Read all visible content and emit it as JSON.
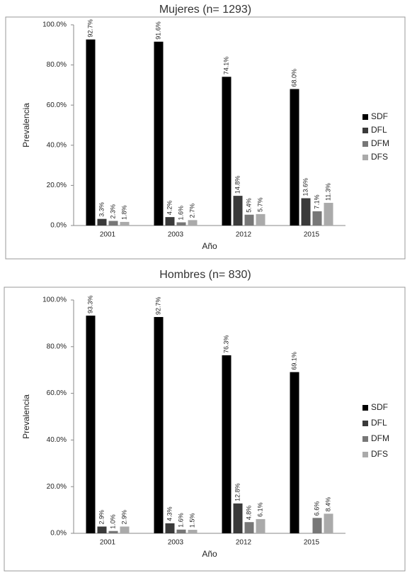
{
  "chart_data": [
    {
      "type": "bar",
      "title": "Mujeres (n= 1293)",
      "x_label": "Año",
      "y_label": "Prevalencia",
      "categories": [
        "2001",
        "2003",
        "2012",
        "2015"
      ],
      "series": [
        {
          "name": "SDF",
          "color": "#000000",
          "values": [
            92.7,
            91.6,
            74.1,
            68.0
          ],
          "value_labels": [
            "92.7%",
            "91.6%",
            "74.1%",
            "68.0%"
          ]
        },
        {
          "name": "DFL",
          "color": "#3a3a3a",
          "values": [
            3.3,
            4.2,
            14.8,
            13.6
          ],
          "value_labels": [
            "3.3%",
            "4.2%",
            "14.8%",
            "13.6%"
          ]
        },
        {
          "name": "DFM",
          "color": "#777777",
          "values": [
            2.3,
            1.6,
            5.4,
            7.1
          ],
          "value_labels": [
            "2.3%",
            "1.6%",
            "5.4%",
            "7.1%"
          ]
        },
        {
          "name": "DFS",
          "color": "#aaaaaa",
          "values": [
            1.8,
            2.7,
            5.7,
            11.3
          ],
          "value_labels": [
            "1.8%",
            "2.7%",
            "5.7%",
            "11.3%"
          ]
        }
      ],
      "ylim": [
        0,
        100
      ],
      "yticks": [
        {
          "value": 0,
          "label": "0.0%"
        },
        {
          "value": 20,
          "label": "20.0%"
        },
        {
          "value": 40,
          "label": "40.0%"
        },
        {
          "value": 60,
          "label": "60.0%"
        },
        {
          "value": 80,
          "label": "80.0%"
        },
        {
          "value": 100,
          "label": "100.0%"
        }
      ],
      "legend": "right"
    },
    {
      "type": "bar",
      "title": "Hombres (n= 830)",
      "x_label": "Año",
      "y_label": "Prevalencia",
      "categories": [
        "2001",
        "2003",
        "2012",
        "2015"
      ],
      "series": [
        {
          "name": "SDF",
          "color": "#000000",
          "values": [
            93.3,
            92.7,
            76.3,
            69.1
          ],
          "value_labels": [
            "93.3%",
            "92.7%",
            "76.3%",
            "69.1%"
          ]
        },
        {
          "name": "DFL",
          "color": "#3a3a3a",
          "values": [
            2.9,
            4.3,
            12.8,
            null
          ],
          "value_labels": [
            "2.9%",
            "4.3%",
            "12.8%",
            null
          ]
        },
        {
          "name": "DFM",
          "color": "#777777",
          "values": [
            1.0,
            1.6,
            4.8,
            6.6
          ],
          "value_labels": [
            "1.0%",
            "1.6%",
            "4.8%",
            "6.6%"
          ]
        },
        {
          "name": "DFS",
          "color": "#aaaaaa",
          "values": [
            2.9,
            1.5,
            6.1,
            8.4
          ],
          "value_labels": [
            "2.9%",
            "1.5%",
            "6.1%",
            "8.4%"
          ]
        }
      ],
      "ylim": [
        0,
        100
      ],
      "yticks": [
        {
          "value": 0,
          "label": "0.0%"
        },
        {
          "value": 20,
          "label": "20.0%"
        },
        {
          "value": 40,
          "label": "40.0%"
        },
        {
          "value": 60,
          "label": "60.0%"
        },
        {
          "value": 80,
          "label": "80.0%"
        },
        {
          "value": 100,
          "label": "100.0%"
        }
      ],
      "legend": "right"
    }
  ]
}
